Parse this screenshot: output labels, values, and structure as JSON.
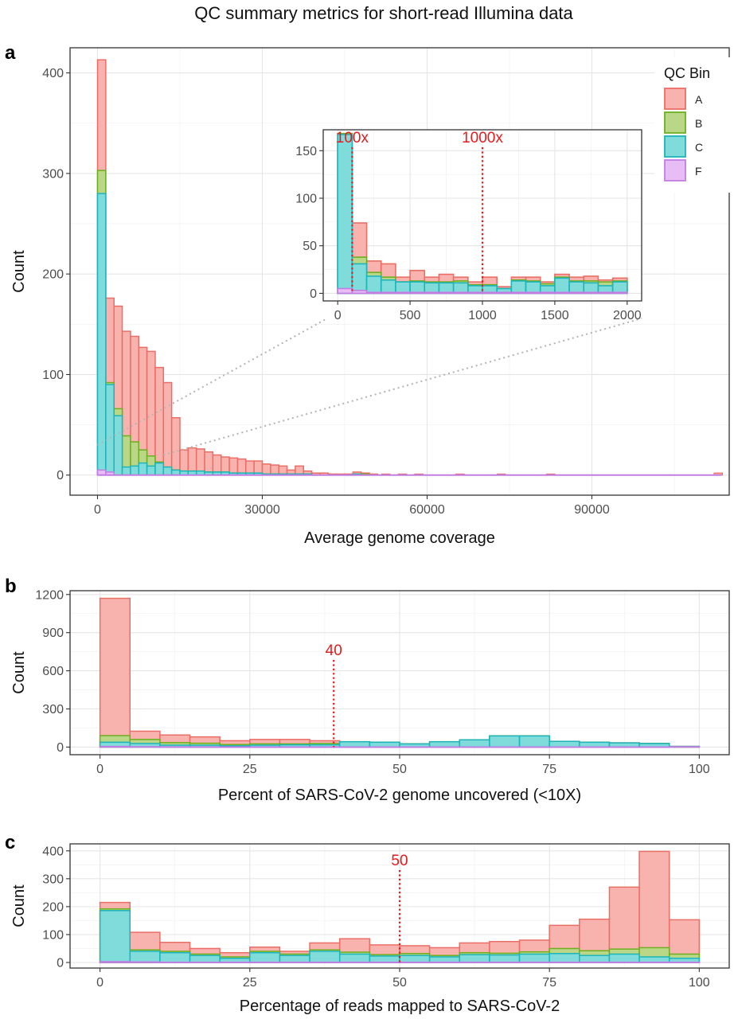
{
  "title": "QC summary metrics for short-read Illumina data",
  "colors": {
    "A": {
      "fill": "#F8B3AE",
      "stroke": "#EB6E66"
    },
    "B": {
      "fill": "#BAD787",
      "stroke": "#6DAF1F"
    },
    "C": {
      "fill": "#7FDCDB",
      "stroke": "#1DB4BA"
    },
    "F": {
      "fill": "#E6BDF4",
      "stroke": "#C17DE3"
    },
    "annotation": "#E41A1C"
  },
  "legend": {
    "title": "QC Bin",
    "items": [
      "A",
      "B",
      "C",
      "F"
    ]
  },
  "chart_data": [
    {
      "type": "bar",
      "panel": "a",
      "subtype": "stacked-histogram",
      "xlabel": "Average genome coverage",
      "ylabel": "Count",
      "xlim": [
        -5000,
        115000
      ],
      "ylim": [
        -20,
        425
      ],
      "xticks": [
        0,
        30000,
        60000,
        90000
      ],
      "yticks": [
        0,
        100,
        200,
        300,
        400
      ],
      "bin_width": 1500,
      "x": [
        750,
        2250,
        3750,
        5250,
        6750,
        8250,
        9750,
        11250,
        12750,
        14250,
        15750,
        17250,
        18750,
        20250,
        21750,
        23250,
        24750,
        26250,
        27750,
        29250,
        30750,
        32250,
        33750,
        35250,
        36750,
        38250,
        39750,
        41250,
        42750,
        44250,
        45750,
        47250,
        48750,
        50250
      ],
      "series": [
        {
          "name": "A",
          "values": [
            413,
            176,
            168,
            143,
            138,
            127,
            123,
            107,
            92,
            57,
            25,
            27,
            26,
            23,
            20,
            18,
            17,
            16,
            14,
            14,
            11,
            10,
            9,
            5,
            9,
            4,
            2,
            2,
            1,
            1,
            1,
            3,
            2,
            1
          ]
        },
        {
          "name": "B",
          "values": [
            303,
            92,
            66,
            39,
            33,
            25,
            19,
            13,
            8,
            5,
            4,
            4,
            3,
            3,
            3,
            3,
            2,
            2,
            2,
            2,
            1,
            1,
            1,
            1,
            1,
            1,
            0,
            0,
            0,
            0,
            0,
            1,
            1,
            0
          ]
        },
        {
          "name": "C",
          "values": [
            280,
            90,
            59,
            8,
            9,
            12,
            9,
            12,
            8,
            5,
            4,
            4,
            4,
            3,
            3,
            3,
            2,
            2,
            2,
            2,
            1,
            1,
            1,
            1,
            1,
            1,
            0,
            0,
            0,
            0,
            0,
            1,
            0,
            0
          ]
        },
        {
          "name": "F",
          "values": [
            5,
            3,
            0,
            0,
            0,
            0,
            0,
            0,
            0,
            0,
            0,
            0,
            0,
            0,
            0,
            0,
            0,
            0,
            0,
            0,
            0,
            0,
            0,
            0,
            0,
            0,
            0,
            0,
            0,
            0,
            0,
            0,
            0,
            0
          ]
        }
      ],
      "sparse_tail": {
        "x": [
          52500,
          55500,
          58500,
          66000,
          73500,
          82500,
          113000
        ],
        "A": [
          1,
          1,
          1,
          1,
          1,
          1,
          2
        ]
      },
      "inset": {
        "xlim": [
          -100,
          2100
        ],
        "ylim": [
          -8,
          172
        ],
        "xticks": [
          0,
          500,
          1000,
          1500,
          2000
        ],
        "yticks": [
          0,
          50,
          100,
          150
        ],
        "bin_width": 100,
        "x": [
          50,
          150,
          250,
          350,
          450,
          550,
          650,
          750,
          850,
          950,
          1050,
          1150,
          1250,
          1350,
          1450,
          1550,
          1650,
          1750,
          1850,
          1950
        ],
        "series": [
          {
            "name": "A",
            "values": [
              168,
              74,
              34,
              31,
              17,
              24,
              17,
              20,
              17,
              12,
              17,
              7,
              17,
              17,
              12,
              20,
              17,
              18,
              14,
              16
            ]
          },
          {
            "name": "B",
            "values": [
              168,
              38,
              22,
              17,
              12,
              13,
              12,
              12,
              13,
              9,
              9,
              5,
              14,
              13,
              10,
              17,
              13,
              13,
              12,
              13
            ]
          },
          {
            "name": "C",
            "values": [
              167,
              31,
              18,
              14,
              12,
              12,
              11,
              11,
              11,
              8,
              8,
              5,
              13,
              12,
              8,
              16,
              12,
              11,
              8,
              12
            ]
          },
          {
            "name": "F",
            "values": [
              5,
              3,
              1,
              1,
              1,
              1,
              1,
              1,
              1,
              1,
              1,
              1,
              1,
              1,
              1,
              1,
              1,
              1,
              1,
              1
            ]
          }
        ],
        "annotations": [
          {
            "x": 100,
            "label": "100x"
          },
          {
            "x": 1000,
            "label": "1000x"
          }
        ]
      }
    },
    {
      "type": "bar",
      "panel": "b",
      "subtype": "stacked-histogram",
      "xlabel": "Percent of SARS-CoV-2 genome uncovered (<10X)",
      "ylabel": "Count",
      "xlim": [
        -5,
        105
      ],
      "ylim": [
        -60,
        1230
      ],
      "xticks": [
        0,
        25,
        50,
        75,
        100
      ],
      "yticks": [
        0,
        300,
        600,
        900,
        1200
      ],
      "bin_width": 5,
      "x": [
        2.5,
        7.5,
        12.5,
        17.5,
        22.5,
        27.5,
        32.5,
        37.5,
        42.5,
        47.5,
        52.5,
        57.5,
        62.5,
        67.5,
        72.5,
        77.5,
        82.5,
        87.5,
        92.5,
        97.5
      ],
      "series": [
        {
          "name": "A",
          "values": [
            1170,
            125,
            95,
            80,
            50,
            60,
            60,
            50,
            42,
            38,
            25,
            42,
            57,
            88,
            88,
            45,
            38,
            33,
            28,
            5
          ]
        },
        {
          "name": "B",
          "values": [
            90,
            60,
            35,
            30,
            20,
            25,
            25,
            28,
            42,
            38,
            25,
            42,
            57,
            88,
            88,
            45,
            38,
            33,
            28,
            5
          ]
        },
        {
          "name": "C",
          "values": [
            38,
            28,
            15,
            15,
            10,
            15,
            18,
            18,
            42,
            38,
            25,
            42,
            57,
            88,
            88,
            45,
            38,
            33,
            28,
            5
          ]
        },
        {
          "name": "F",
          "values": [
            5,
            3,
            2,
            2,
            1,
            1,
            1,
            1,
            1,
            1,
            1,
            1,
            1,
            1,
            1,
            1,
            1,
            1,
            1,
            3
          ]
        }
      ],
      "annotations": [
        {
          "x": 39,
          "label": "40"
        }
      ]
    },
    {
      "type": "bar",
      "panel": "c",
      "subtype": "stacked-histogram",
      "xlabel": "Percentage of reads mapped to SARS-CoV-2",
      "ylabel": "Count",
      "xlim": [
        -5,
        105
      ],
      "ylim": [
        -20,
        425
      ],
      "xticks": [
        0,
        25,
        50,
        75,
        100
      ],
      "yticks": [
        0,
        100,
        200,
        300,
        400
      ],
      "bin_width": 5,
      "x": [
        2.5,
        7.5,
        12.5,
        17.5,
        22.5,
        27.5,
        32.5,
        37.5,
        42.5,
        47.5,
        52.5,
        57.5,
        62.5,
        67.5,
        72.5,
        77.5,
        82.5,
        87.5,
        92.5,
        97.5
      ],
      "series": [
        {
          "name": "A",
          "values": [
            215,
            108,
            72,
            50,
            35,
            55,
            40,
            70,
            85,
            63,
            60,
            53,
            70,
            75,
            80,
            133,
            155,
            270,
            398,
            153
          ]
        },
        {
          "name": "B",
          "values": [
            192,
            45,
            40,
            30,
            20,
            40,
            30,
            45,
            37,
            28,
            32,
            25,
            35,
            33,
            38,
            50,
            42,
            48,
            53,
            30
          ]
        },
        {
          "name": "C",
          "values": [
            186,
            40,
            35,
            25,
            15,
            35,
            25,
            40,
            30,
            23,
            25,
            20,
            28,
            27,
            30,
            32,
            25,
            30,
            20,
            15
          ]
        },
        {
          "name": "F",
          "values": [
            3,
            2,
            1,
            1,
            1,
            1,
            1,
            1,
            1,
            1,
            1,
            1,
            1,
            1,
            1,
            1,
            1,
            1,
            1,
            1
          ]
        }
      ],
      "annotations": [
        {
          "x": 50,
          "label": "50"
        }
      ]
    }
  ]
}
